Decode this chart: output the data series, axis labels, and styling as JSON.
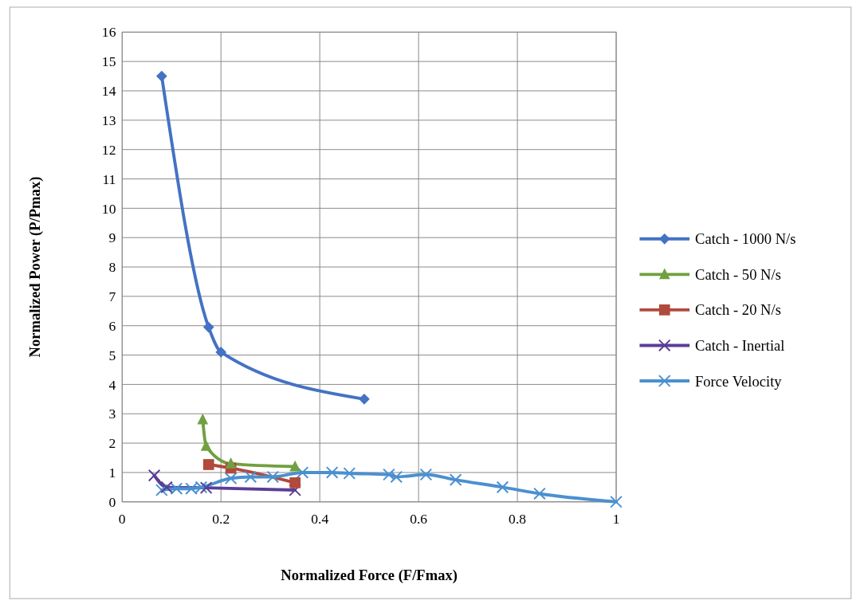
{
  "chart_data": {
    "type": "line",
    "xlabel": "Normalized Force (F/Fmax)",
    "ylabel": "Normalized Power (P/Pmax)",
    "xlim": [
      0,
      1
    ],
    "xticks": [
      0,
      0.2,
      0.4,
      0.6,
      0.8,
      1
    ],
    "ylim": [
      0,
      16
    ],
    "yticks": [
      0,
      1,
      2,
      3,
      4,
      5,
      6,
      7,
      8,
      9,
      10,
      11,
      12,
      13,
      14,
      15,
      16
    ],
    "grid": true,
    "legend": "right",
    "series": [
      {
        "name": "Catch - 1000 N/s",
        "color": "#4472c4",
        "marker": "diamond",
        "x": [
          0.08,
          0.175,
          0.2,
          0.49
        ],
        "values": [
          14.5,
          5.95,
          5.1,
          3.5
        ]
      },
      {
        "name": "Catch - 50 N/s",
        "color": "#70a040",
        "marker": "triangle",
        "x": [
          0.163,
          0.17,
          0.22,
          0.35
        ],
        "values": [
          2.8,
          1.9,
          1.3,
          1.2
        ]
      },
      {
        "name": "Catch - 20 N/s",
        "color": "#b04a3c",
        "marker": "square",
        "x": [
          0.175,
          0.22,
          0.35
        ],
        "values": [
          1.27,
          1.15,
          0.65
        ]
      },
      {
        "name": "Catch - Inertial",
        "color": "#5a3e96",
        "marker": "cross",
        "x": [
          0.065,
          0.09,
          0.17,
          0.35
        ],
        "values": [
          0.9,
          0.5,
          0.48,
          0.4
        ]
      },
      {
        "name": "Force Velocity",
        "color": "#4a90d0",
        "marker": "cross",
        "x": [
          0.08,
          0.11,
          0.14,
          0.16,
          0.22,
          0.26,
          0.305,
          0.365,
          0.425,
          0.46,
          0.54,
          0.555,
          0.615,
          0.675,
          0.77,
          0.845,
          1
        ],
        "values": [
          0.4,
          0.45,
          0.45,
          0.5,
          0.8,
          0.85,
          0.85,
          1,
          1,
          0.97,
          0.93,
          0.85,
          0.93,
          0.75,
          0.5,
          0.28,
          0
        ]
      }
    ]
  }
}
